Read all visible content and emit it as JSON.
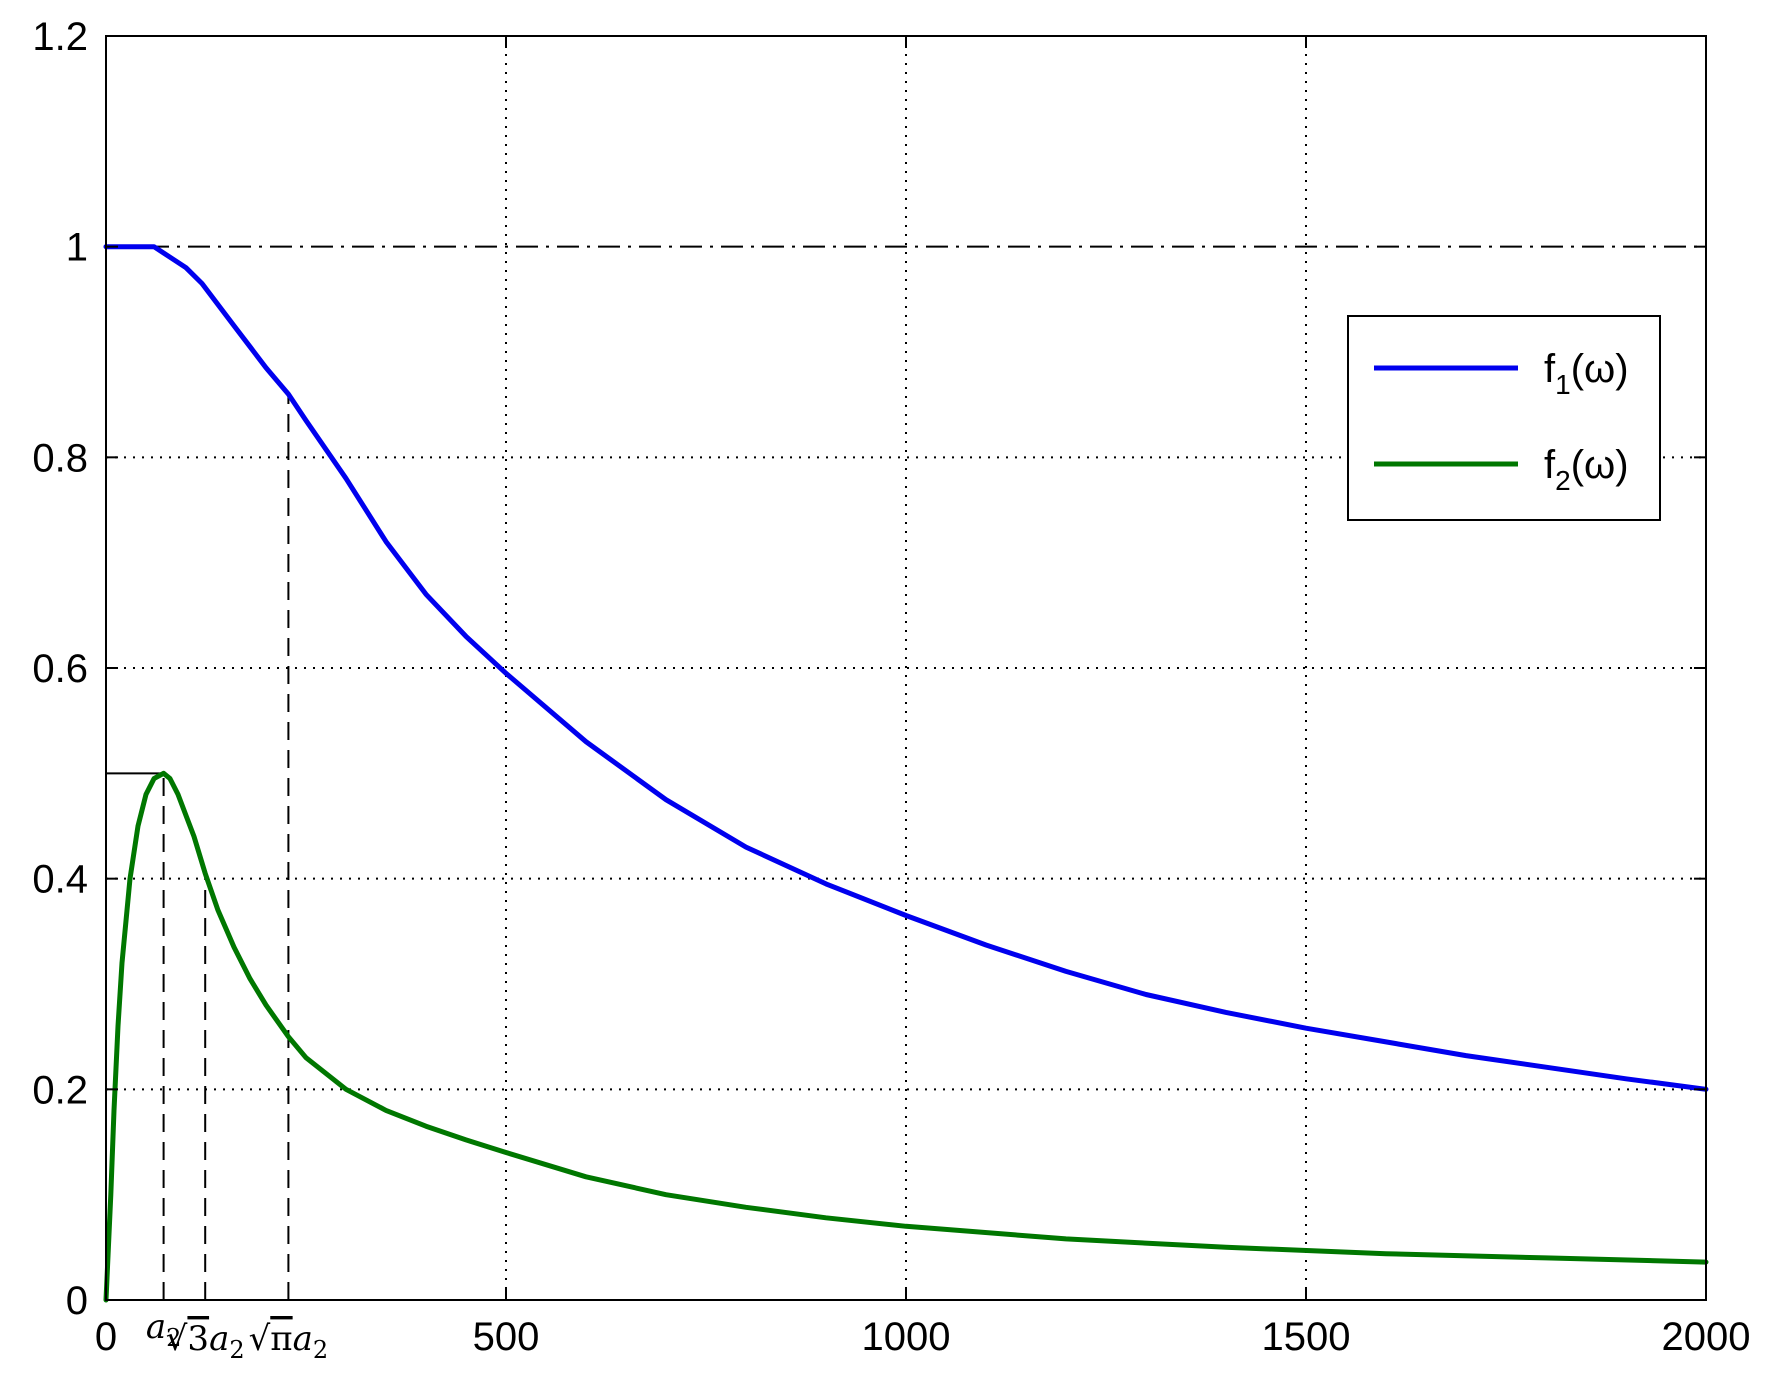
{
  "chart_data": {
    "type": "line",
    "title": "",
    "xlabel": "",
    "ylabel": "",
    "xlim": [
      0,
      2000
    ],
    "ylim": [
      0,
      1.2
    ],
    "grid": true,
    "legend_position": "top-right",
    "x_ticks": [
      {
        "value": 0,
        "label": "0"
      },
      {
        "value": 500,
        "label": "500"
      },
      {
        "value": 1000,
        "label": "1000"
      },
      {
        "value": 1500,
        "label": "1500"
      },
      {
        "value": 2000,
        "label": "2000"
      }
    ],
    "y_ticks": [
      {
        "value": 0,
        "label": "0"
      },
      {
        "value": 0.2,
        "label": "0.2"
      },
      {
        "value": 0.4,
        "label": "0.4"
      },
      {
        "value": 0.6,
        "label": "0.6"
      },
      {
        "value": 0.8,
        "label": "0.8"
      },
      {
        "value": 1,
        "label": "1"
      },
      {
        "value": 1.2,
        "label": "1.2"
      }
    ],
    "reference_line": {
      "y": 1,
      "style": "dash-dot",
      "color": "#000000"
    },
    "peak_marker": {
      "x": 72,
      "y": 0.5
    },
    "x_markers": [
      {
        "value": 72,
        "main": "a",
        "sub": "2",
        "sqrt": ""
      },
      {
        "value": 124,
        "main": "a",
        "sub": "2",
        "sqrt": "3"
      },
      {
        "value": 228,
        "main": "a",
        "sub": "2",
        "sqrt": "π"
      }
    ],
    "series": [
      {
        "name_main": "f",
        "name_sub": "1",
        "name_rest": "(ω)",
        "color": "#0000ee",
        "x": [
          0,
          40,
          60,
          80,
          100,
          120,
          140,
          160,
          180,
          200,
          228,
          250,
          300,
          350,
          400,
          450,
          500,
          600,
          700,
          800,
          900,
          1000,
          1100,
          1200,
          1300,
          1400,
          1500,
          1600,
          1700,
          1800,
          1900,
          2000
        ],
        "y": [
          1.0,
          1.0,
          1.0,
          0.99,
          0.98,
          0.965,
          0.945,
          0.925,
          0.905,
          0.885,
          0.86,
          0.835,
          0.78,
          0.72,
          0.67,
          0.63,
          0.595,
          0.53,
          0.475,
          0.43,
          0.395,
          0.365,
          0.337,
          0.312,
          0.29,
          0.273,
          0.258,
          0.245,
          0.232,
          0.221,
          0.21,
          0.2
        ]
      },
      {
        "name_main": "f",
        "name_sub": "2",
        "name_rest": "(ω)",
        "color": "#007700",
        "x": [
          0,
          3,
          6,
          10,
          15,
          20,
          30,
          40,
          50,
          60,
          72,
          80,
          90,
          100,
          110,
          124,
          140,
          160,
          180,
          200,
          228,
          250,
          300,
          350,
          400,
          450,
          500,
          600,
          700,
          800,
          900,
          1000,
          1200,
          1400,
          1600,
          1800,
          2000
        ],
        "y": [
          0,
          0.05,
          0.1,
          0.18,
          0.26,
          0.32,
          0.4,
          0.45,
          0.48,
          0.495,
          0.5,
          0.495,
          0.48,
          0.46,
          0.44,
          0.405,
          0.37,
          0.335,
          0.305,
          0.28,
          0.25,
          0.23,
          0.2,
          0.18,
          0.165,
          0.152,
          0.14,
          0.117,
          0.1,
          0.088,
          0.078,
          0.07,
          0.058,
          0.05,
          0.044,
          0.04,
          0.036
        ]
      }
    ]
  }
}
